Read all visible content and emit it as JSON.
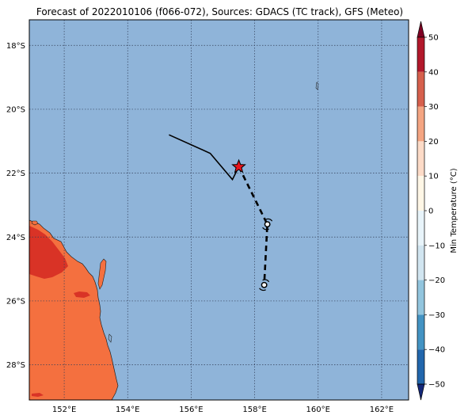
{
  "title": "Forecast of 2022010106 (f066-072), Sources: GDACS (TC track), GFS (Meteo)",
  "map": {
    "lat_ticks": [
      "18°S",
      "20°S",
      "22°S",
      "24°S",
      "26°S",
      "28°S"
    ],
    "lon_ticks": [
      "152°E",
      "154°E",
      "156°E",
      "158°E",
      "160°E",
      "162°E"
    ],
    "lon_range": [
      150.9,
      162.85
    ],
    "lat_range": [
      -29.1,
      -17.2
    ],
    "ocean_color": "#8fb4d9",
    "land_color": "#f4703f",
    "warm_land_color": "#d93326",
    "track_past": [
      [
        155.3,
        -20.8
      ],
      [
        156.6,
        -21.38
      ],
      [
        157.3,
        -22.2
      ],
      [
        157.5,
        -21.8
      ]
    ],
    "track_forecast": [
      [
        157.5,
        -21.8
      ],
      [
        158.4,
        -23.6
      ],
      [
        158.3,
        -25.5
      ]
    ],
    "current_position": [
      157.5,
      -21.8
    ],
    "forecast_points": [
      [
        158.4,
        -23.6
      ],
      [
        158.3,
        -25.5
      ]
    ]
  },
  "colorbar": {
    "label": "Min Temperature (°C)",
    "ticks": [
      "50",
      "40",
      "30",
      "20",
      "10",
      "0",
      "−10",
      "−20",
      "−30",
      "−40",
      "−50"
    ],
    "colors": [
      "#7f0023",
      "#b2182b",
      "#d6604d",
      "#f4a582",
      "#fddbc7",
      "#fff7e6",
      "#e8f4fa",
      "#d1e5f0",
      "#92c5de",
      "#4393c3",
      "#2166ac",
      "#14287a"
    ]
  }
}
